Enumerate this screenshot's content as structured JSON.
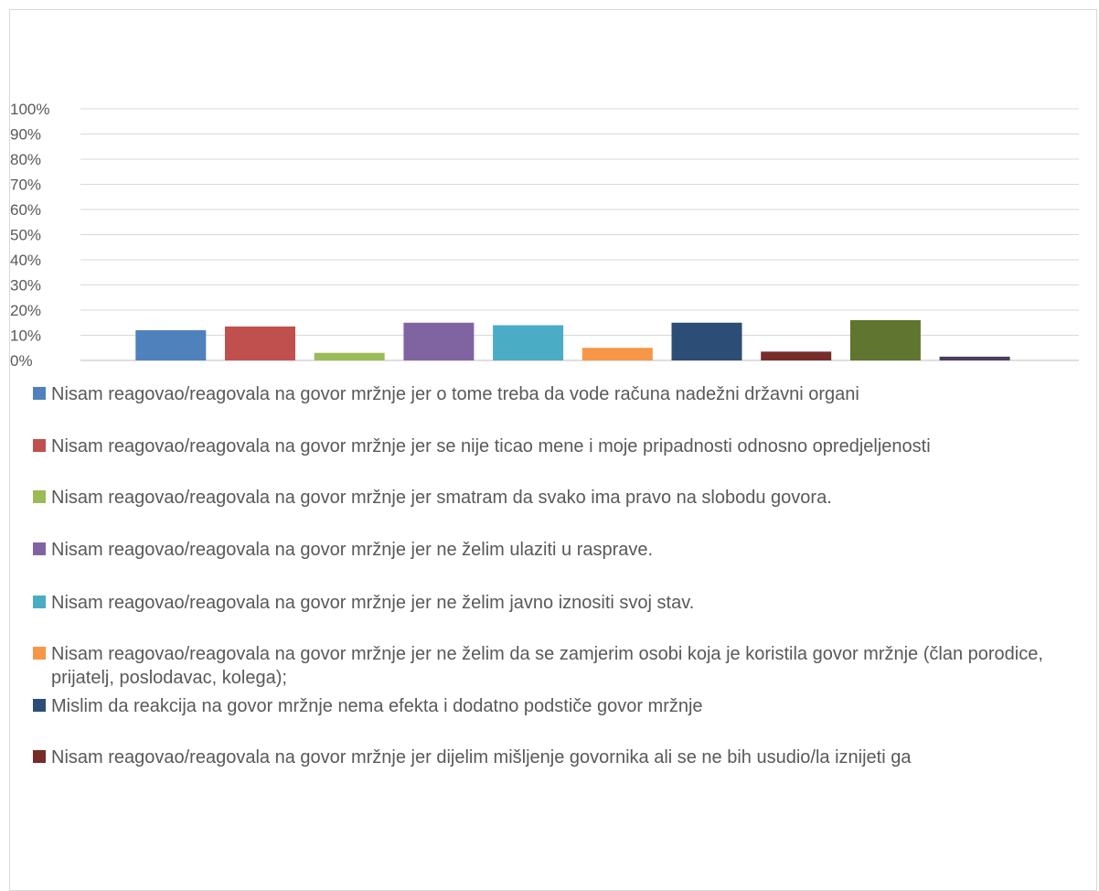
{
  "chart_data": {
    "type": "bar",
    "title": "",
    "xlabel": "",
    "ylabel": "",
    "ylim": [
      0,
      1
    ],
    "y_ticks": [
      "0%",
      "10%",
      "20%",
      "30%",
      "40%",
      "50%",
      "60%",
      "70%",
      "80%",
      "90%",
      "100%"
    ],
    "grid": true,
    "legend_position": "bottom",
    "series": [
      {
        "name": "Nisam reagovao/reagovala na govor mržnje jer o tome treba da vode računa nadežni državni organi",
        "value": 0.12,
        "color": "#4F81BD"
      },
      {
        "name": "Nisam reagovao/reagovala na govor mržnje jer se nije ticao mene i moje pripadnosti odnosno opredjeljenosti",
        "value": 0.135,
        "color": "#C0504D"
      },
      {
        "name": "Nisam reagovao/reagovala na govor mržnje jer smatram da svako ima pravo na slobodu govora.",
        "value": 0.03,
        "color": "#9BBB59"
      },
      {
        "name": "Nisam reagovao/reagovala na govor mržnje jer ne želim ulaziti u rasprave.",
        "value": 0.15,
        "color": "#8064A2"
      },
      {
        "name": "Nisam reagovao/reagovala na govor mržnje jer ne želim javno iznositi svoj stav.",
        "value": 0.14,
        "color": "#4BACC6"
      },
      {
        "name": "Nisam reagovao/reagovala na govor mržnje jer ne želim da se zamjerim osobi koja je koristila govor mržnje (član porodice, prijatelj, poslodavac, kolega);",
        "value": 0.05,
        "color": "#F79646"
      },
      {
        "name": "Mislim da reakcija na govor mržnje nema efekta i dodatno podstiče govor mržnje",
        "value": 0.15,
        "color": "#2C4D75"
      },
      {
        "name": "Nisam reagovao/reagovala na govor mržnje jer dijelim mišljenje govornika ali se ne bih usudio/la iznijeti ga",
        "value": 0.035,
        "color": "#772C2A"
      },
      {
        "name": "",
        "value": 0.16,
        "color": "#5F7530"
      },
      {
        "name": "",
        "value": 0.015,
        "color": "#4D3B62"
      }
    ]
  }
}
